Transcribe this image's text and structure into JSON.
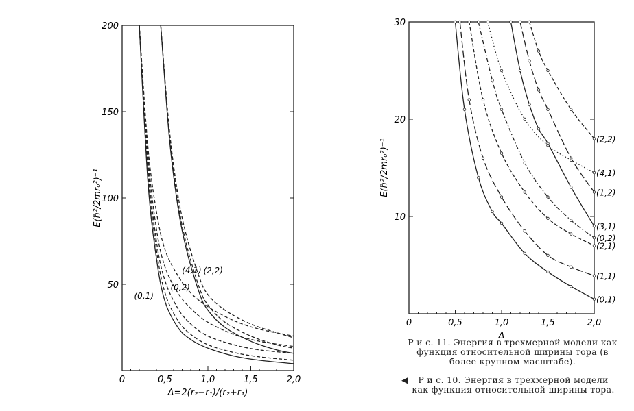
{
  "chart_data": [
    {
      "type": "line",
      "id": "fig10",
      "xlabel": "Δ=2(r₂−r₁)/(r₂+r₁)",
      "ylabel": "E(ħ²/2mr₀²)⁻¹",
      "xlim": [
        0,
        2.0
      ],
      "ylim": [
        0,
        200
      ],
      "xticks": [
        "0",
        "0,5",
        "1,0",
        "1,5",
        "2,0"
      ],
      "yticks": [
        "50",
        "100",
        "150",
        "200"
      ],
      "series": [
        {
          "name": "(0,1)",
          "style": "solid",
          "x": [
            0.2,
            0.3,
            0.4,
            0.5,
            0.65,
            0.8,
            1.0,
            1.3,
            1.6,
            2.0
          ],
          "y": [
            200,
            110,
            65,
            40,
            25,
            18,
            13,
            8.5,
            6,
            4
          ]
        },
        {
          "name": "",
          "style": "dash",
          "x": [
            0.2,
            0.3,
            0.4,
            0.5,
            0.65,
            0.8,
            1.0,
            1.3,
            1.6,
            2.0
          ],
          "y": [
            200,
            115,
            70,
            45,
            29,
            21,
            15,
            10.5,
            8,
            6
          ]
        },
        {
          "name": "",
          "style": "dash",
          "x": [
            0.2,
            0.3,
            0.4,
            0.5,
            0.65,
            0.8,
            1.0,
            1.3,
            1.6,
            2.0
          ],
          "y": [
            200,
            120,
            75,
            52,
            36,
            27,
            20,
            15,
            12,
            10
          ]
        },
        {
          "name": "",
          "style": "dash",
          "x": [
            0.2,
            0.3,
            0.4,
            0.5,
            0.65,
            0.8,
            1.0,
            1.3,
            1.6,
            2.0
          ],
          "y": [
            200,
            125,
            82,
            60,
            45,
            36,
            28,
            21,
            17,
            14
          ]
        },
        {
          "name": "(4,1)",
          "style": "dash",
          "x": [
            0.2,
            0.3,
            0.4,
            0.5,
            0.65,
            0.8,
            1.0,
            1.3,
            1.6,
            2.0
          ],
          "y": [
            200,
            130,
            92,
            70,
            55,
            45,
            37,
            29,
            24,
            20
          ]
        },
        {
          "name": "(0,2)",
          "style": "solid",
          "x": [
            0.45,
            0.55,
            0.65,
            0.75,
            0.9,
            1.0,
            1.2,
            1.5,
            1.8,
            2.0
          ],
          "y": [
            200,
            135,
            95,
            70,
            45,
            35,
            25,
            17,
            12,
            10
          ]
        },
        {
          "name": "",
          "style": "dash",
          "x": [
            0.45,
            0.55,
            0.65,
            0.75,
            0.9,
            1.0,
            1.2,
            1.5,
            1.8,
            2.0
          ],
          "y": [
            200,
            137,
            98,
            73,
            48,
            38,
            28,
            20,
            15,
            13
          ]
        },
        {
          "name": "(2,2)",
          "style": "dash",
          "x": [
            0.45,
            0.55,
            0.65,
            0.75,
            0.9,
            1.0,
            1.2,
            1.5,
            1.8,
            2.0
          ],
          "y": [
            200,
            140,
            102,
            78,
            54,
            44,
            35,
            27,
            22,
            19
          ]
        }
      ]
    },
    {
      "type": "line",
      "id": "fig11",
      "xlabel": "Δ",
      "ylabel": "E(ħ²/2mr₀²)⁻¹",
      "xlim": [
        0,
        2.0
      ],
      "ylim": [
        0,
        30
      ],
      "xticks": [
        "0",
        "0,5",
        "1,0",
        "1,5",
        "2,0"
      ],
      "yticks": [
        "10",
        "20",
        "30"
      ],
      "series": [
        {
          "name": "(0,1)",
          "style": "solid",
          "x": [
            0.5,
            0.6,
            0.75,
            0.9,
            1.0,
            1.25,
            1.5,
            1.75,
            2.0
          ],
          "y": [
            30,
            21,
            14,
            10.5,
            9.3,
            6.2,
            4.3,
            2.8,
            1.5
          ]
        },
        {
          "name": "(1,1)",
          "style": "longdash",
          "x": [
            0.55,
            0.65,
            0.8,
            1.0,
            1.25,
            1.5,
            1.75,
            2.0
          ],
          "y": [
            30,
            22,
            16,
            12,
            8.5,
            6,
            4.8,
            3.9
          ]
        },
        {
          "name": "(2,1)",
          "style": "dash",
          "x": [
            0.65,
            0.8,
            1.0,
            1.25,
            1.5,
            1.75,
            2.0
          ],
          "y": [
            30,
            22,
            16.5,
            12.5,
            9.8,
            8.2,
            7
          ]
        },
        {
          "name": "(0,2)",
          "style": "dotdash",
          "x": [
            0.75,
            0.9,
            1.0,
            1.25,
            1.5,
            1.75,
            2.0
          ],
          "y": [
            30,
            24,
            21,
            15.5,
            12,
            9.6,
            7.8
          ]
        },
        {
          "name": "(3,1)",
          "style": "solid",
          "x": [
            1.1,
            1.2,
            1.3,
            1.4,
            1.5,
            1.75,
            2.0
          ],
          "y": [
            30,
            25,
            21.5,
            19,
            17.5,
            13,
            9
          ]
        },
        {
          "name": "(1,2)",
          "style": "longdash",
          "x": [
            1.2,
            1.3,
            1.4,
            1.5,
            1.75,
            2.0
          ],
          "y": [
            30,
            26,
            23,
            21,
            16,
            12.5
          ]
        },
        {
          "name": "(4,1)",
          "style": "dotted",
          "x": [
            0.85,
            1.0,
            1.25,
            1.5,
            1.75,
            2.0
          ],
          "y": [
            30,
            25,
            20,
            17.3,
            15.8,
            14.5
          ]
        },
        {
          "name": "(2,2)",
          "style": "dash",
          "x": [
            1.3,
            1.4,
            1.5,
            1.75,
            2.0
          ],
          "y": [
            30,
            27,
            25,
            21,
            18
          ]
        }
      ]
    }
  ],
  "captions": {
    "fig11": "Р и с. 11. Энергия в трехмерной модели как функция относительной ширины тора (в более крупном масштабе).",
    "fig10_marker": "◀",
    "fig10": "Р и с. 10. Энергия в трехмерной модели как функция относительной ширины тора."
  }
}
